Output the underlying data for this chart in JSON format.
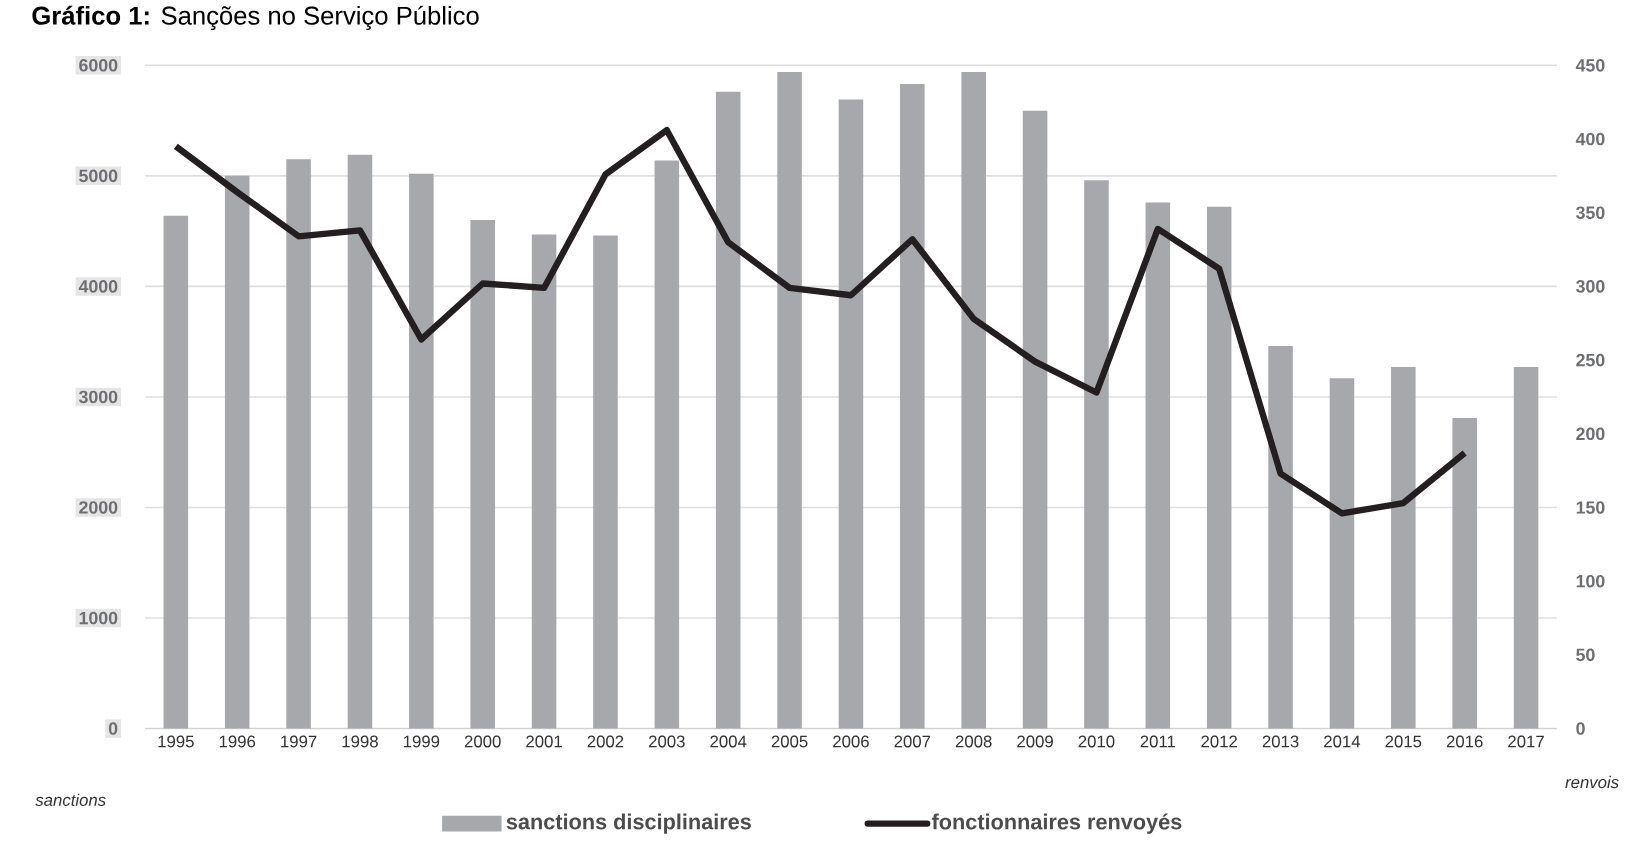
{
  "chart_data": {
    "type": "bar",
    "title": "**Gráfico 1:** Sanções no Serviço Público",
    "annotations": [
      "sanctions",
      "renvois"
    ],
    "categories": [
      "1995",
      "1996",
      "1997",
      "1998",
      "1999",
      "2000",
      "2001",
      "2002",
      "2003",
      "2004",
      "2005",
      "2006",
      "2007",
      "2008",
      "2009",
      "2010",
      "2011",
      "2012",
      "2013",
      "2014",
      "2015",
      "2016",
      "2017"
    ],
    "series": [
      {
        "name": "sanctions disciplinaires",
        "color": "#a7a8ab",
        "values": [
          4640,
          5000,
          5150,
          5190,
          5020,
          4600,
          4470,
          4460,
          5140,
          5760,
          5940,
          5690,
          5830,
          5940,
          5590,
          4960,
          4760,
          4720,
          3460,
          3170,
          3270,
          2810,
          3270
        ]
      },
      {
        "name": "fonctionnaires renvoyés",
        "type": "line",
        "axis": "y2",
        "color": "#231f20",
        "values": [
          395,
          364,
          334,
          338,
          264,
          302,
          299,
          376,
          406,
          330,
          299,
          294,
          332,
          278,
          249,
          228,
          339,
          312,
          173,
          146,
          153,
          187,
          null
        ]
      }
    ],
    "ylim": [
      0,
      6000
    ],
    "yticks": [
      0,
      1000,
      2000,
      3000,
      4000,
      5000,
      6000
    ],
    "y2lim": [
      0,
      450
    ],
    "y2ticks": [
      0,
      50,
      100,
      150,
      200,
      250,
      300,
      350,
      400,
      450
    ],
    "grid": "y",
    "legend": "bottom",
    "marker": "none",
    "line_style": "solid"
  }
}
